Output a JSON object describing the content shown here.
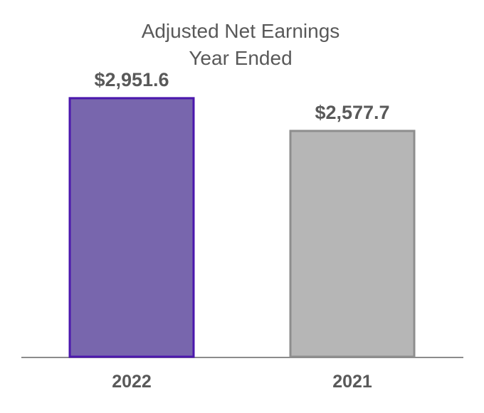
{
  "chart_data": {
    "type": "bar",
    "title": "Adjusted Net Earnings",
    "subtitle": "Year Ended",
    "categories": [
      "2022",
      "2021"
    ],
    "values": [
      2951.6,
      2577.7
    ],
    "data_labels": [
      "$2,951.6",
      "$2,577.7"
    ],
    "ylim": [
      0,
      3300
    ],
    "xlabel": "",
    "ylabel": "",
    "grid": false,
    "legend": "none",
    "colors": {
      "bar_fills": [
        "#7866ad",
        "#b6b6b6"
      ],
      "bar_strokes": [
        "#4b17ad",
        "#8e8e8e"
      ],
      "title": "#595959",
      "label": "#595959",
      "axis": "#8c8c8c"
    }
  }
}
